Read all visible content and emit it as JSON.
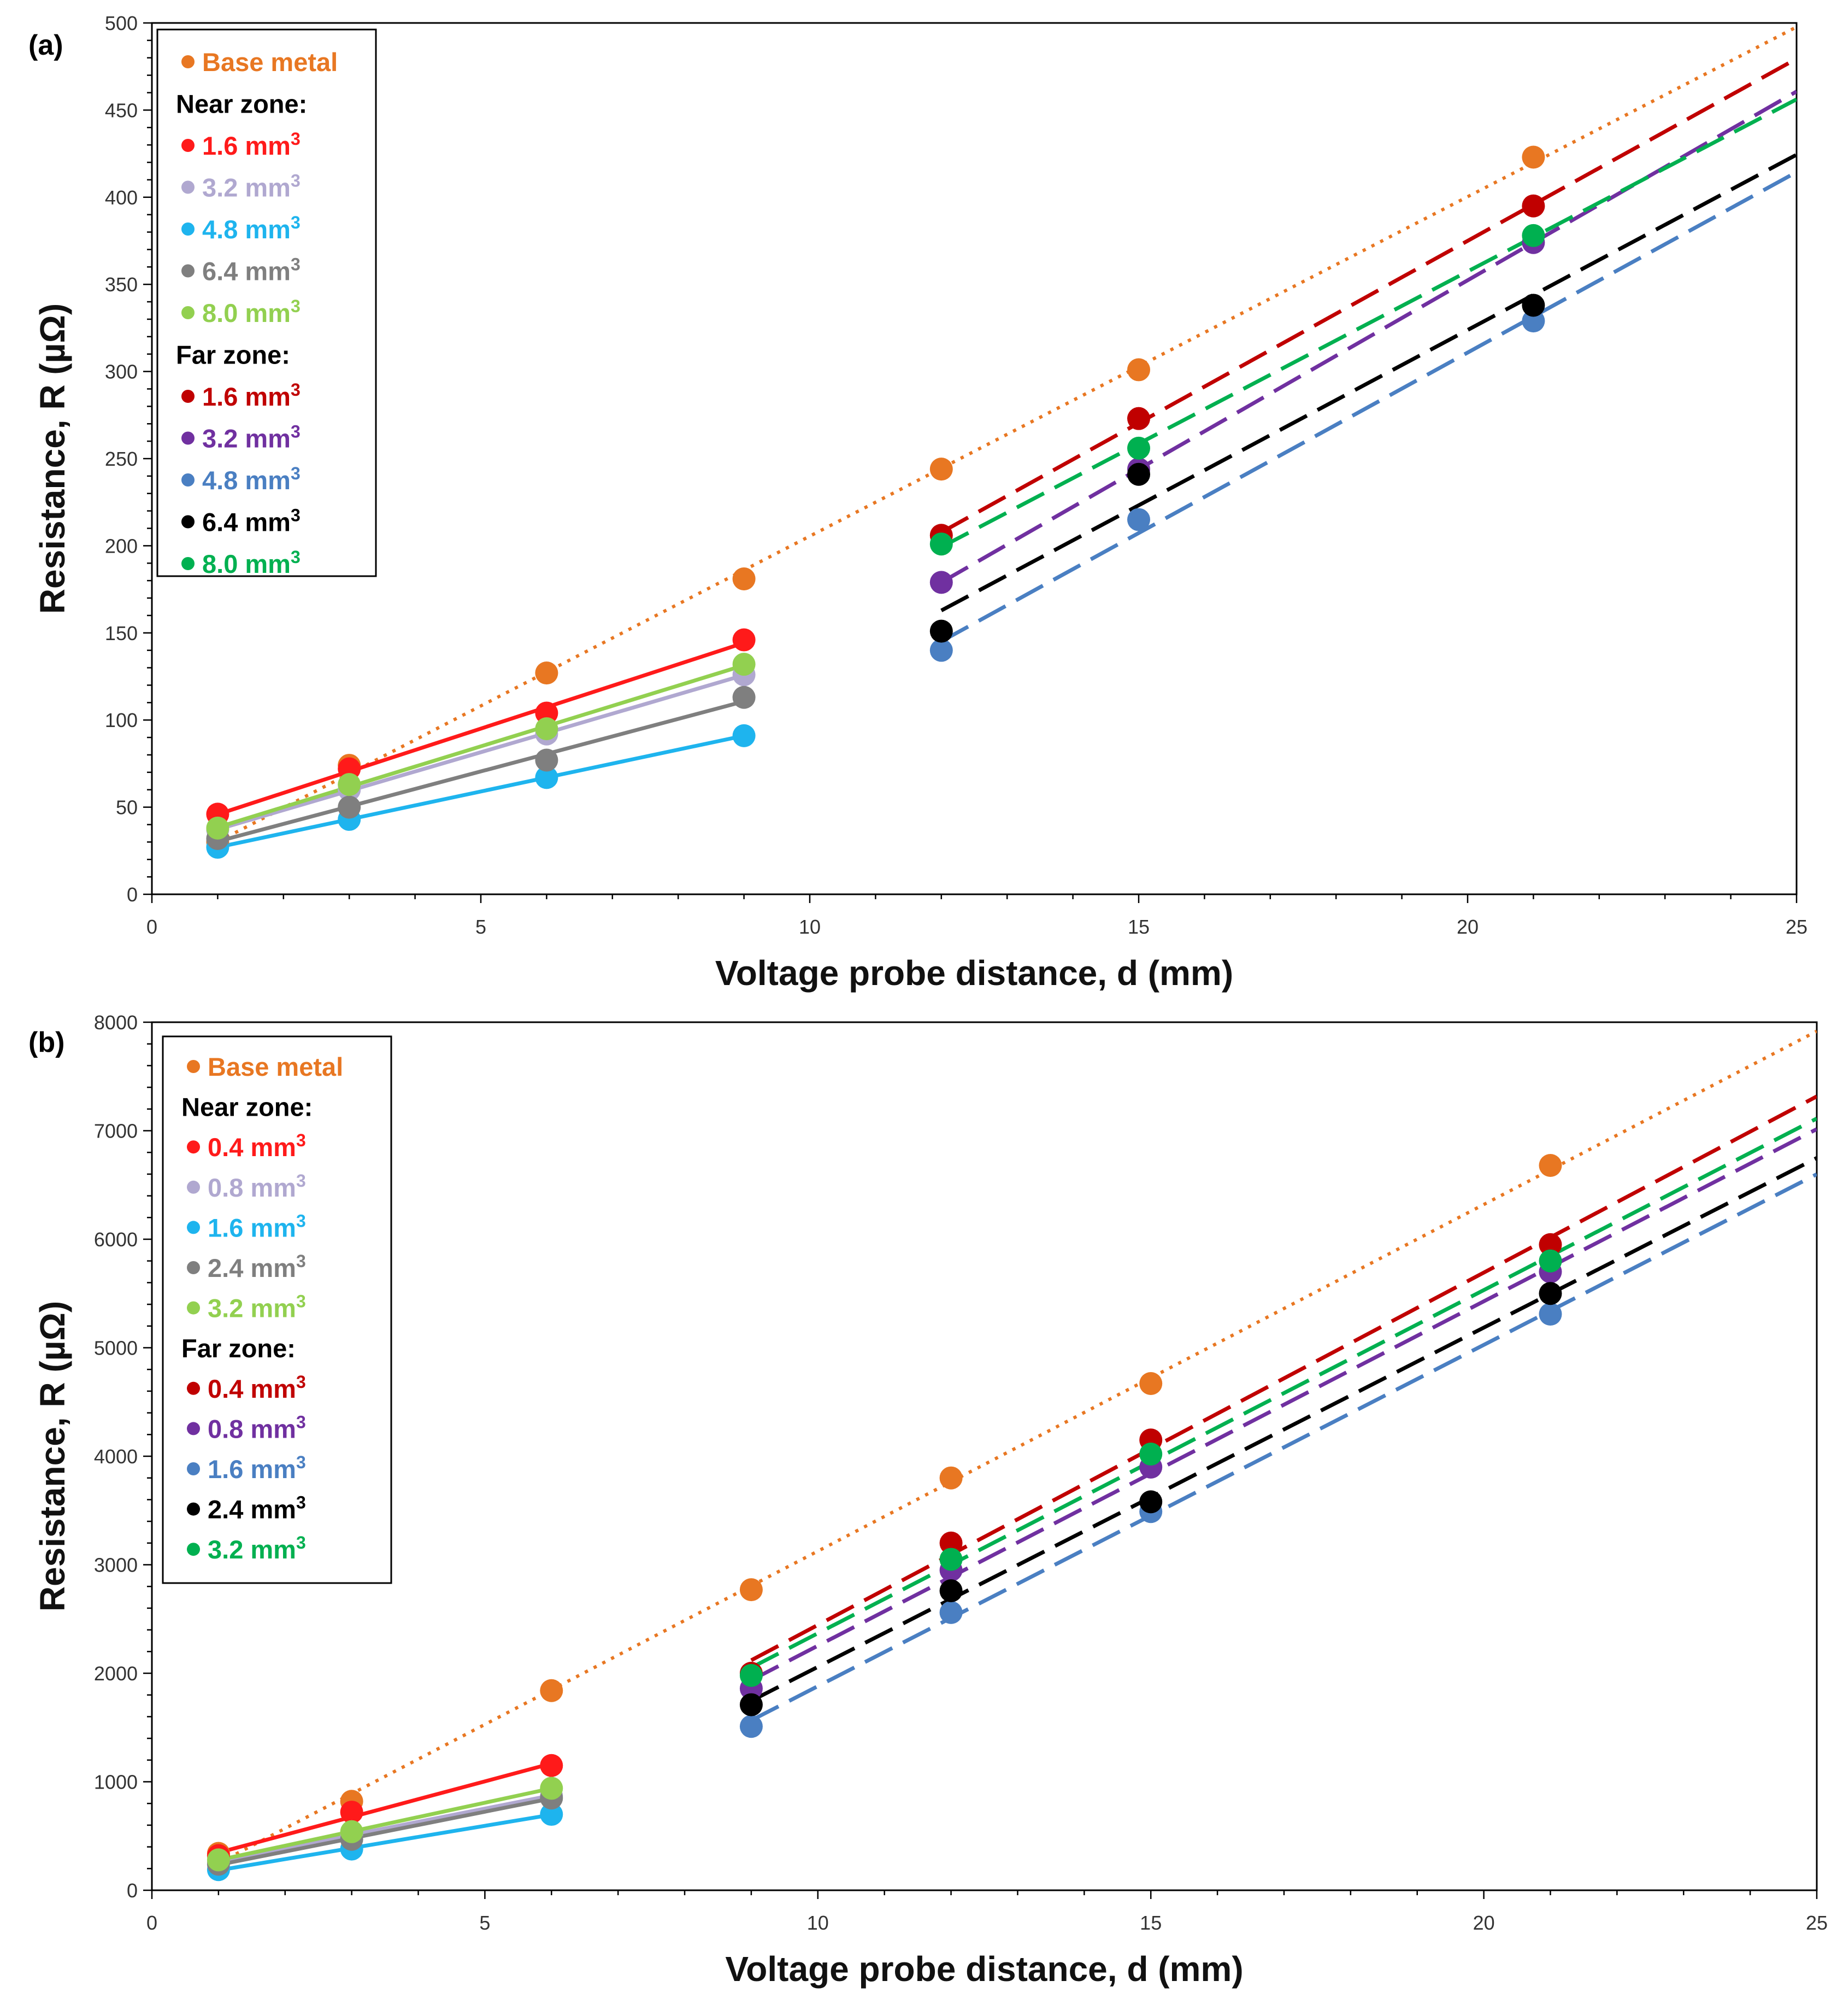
{
  "chart_data": [
    {
      "type": "scatter",
      "panel_label": "(a)",
      "xlabel": "Voltage probe distance, d (mm)",
      "ylabel": "Resistance, R (µΩ)",
      "xlim": [
        0,
        25
      ],
      "ylim": [
        0,
        500
      ],
      "xticks": [
        0,
        5,
        10,
        15,
        20,
        25
      ],
      "yticks": [
        0,
        50,
        100,
        150,
        200,
        250,
        300,
        350,
        400,
        450,
        500
      ],
      "grid": false,
      "legend_position": "top-left",
      "series": [
        {
          "name": "Base metal",
          "group": "",
          "unit": "",
          "color": "#E87722",
          "x": [
            1,
            3,
            6,
            9,
            12,
            15,
            21
          ],
          "y": [
            30,
            74,
            127,
            181,
            244,
            301,
            423
          ],
          "fit": "dotted",
          "fit_range": [
            1,
            25
          ]
        },
        {
          "name": "1.6",
          "group": "Near zone:",
          "unit": " mm",
          "color": "#FF1A1A",
          "x": [
            1,
            3,
            6,
            9
          ],
          "y": [
            46,
            72,
            104,
            146
          ],
          "fit": "solid",
          "fit_range": [
            1,
            9
          ]
        },
        {
          "name": "3.2",
          "group": "Near zone:",
          "unit": " mm",
          "color": "#B0A8D0",
          "x": [
            1,
            3,
            6,
            9
          ],
          "y": [
            37,
            60,
            92,
            126
          ],
          "fit": "solid",
          "fit_range": [
            1,
            9
          ]
        },
        {
          "name": "4.8",
          "group": "Near zone:",
          "unit": " mm",
          "color": "#1EB4EE",
          "x": [
            1,
            3,
            6,
            9
          ],
          "y": [
            27,
            43,
            67,
            91
          ],
          "fit": "solid",
          "fit_range": [
            1,
            9
          ]
        },
        {
          "name": "6.4",
          "group": "Near zone:",
          "unit": " mm",
          "color": "#7F7F7F",
          "x": [
            1,
            3,
            6,
            9
          ],
          "y": [
            32,
            50,
            77,
            113
          ],
          "fit": "solid",
          "fit_range": [
            1,
            9
          ]
        },
        {
          "name": "8.0",
          "group": "Near zone:",
          "unit": " mm",
          "color": "#92D050",
          "x": [
            1,
            3,
            6,
            9
          ],
          "y": [
            38,
            63,
            95,
            132
          ],
          "fit": "solid",
          "fit_range": [
            1,
            9
          ]
        },
        {
          "name": "1.6",
          "group": "Far zone:",
          "unit": " mm",
          "color": "#C00000",
          "x": [
            12,
            15,
            21
          ],
          "y": [
            206,
            273,
            395
          ],
          "fit": "dashed",
          "fit_range": [
            12,
            25
          ]
        },
        {
          "name": "3.2",
          "group": "Far zone:",
          "unit": " mm",
          "color": "#7030A0",
          "x": [
            12,
            15,
            21
          ],
          "y": [
            179,
            244,
            374
          ],
          "fit": "dashed",
          "fit_range": [
            12,
            25
          ]
        },
        {
          "name": "4.8",
          "group": "Far zone:",
          "unit": " mm",
          "color": "#4A7FC2",
          "x": [
            12,
            15,
            21
          ],
          "y": [
            140,
            215,
            329
          ],
          "fit": "dashed",
          "fit_range": [
            12,
            25
          ]
        },
        {
          "name": "6.4",
          "group": "Far zone:",
          "unit": " mm",
          "color": "#000000",
          "x": [
            12,
            15,
            21
          ],
          "y": [
            151,
            241,
            338
          ],
          "fit": "dashed",
          "fit_range": [
            12,
            25
          ]
        },
        {
          "name": "8.0",
          "group": "Far zone:",
          "unit": " mm",
          "color": "#00B050",
          "x": [
            12,
            15,
            21
          ],
          "y": [
            201,
            256,
            378
          ],
          "fit": "dashed",
          "fit_range": [
            12,
            25
          ]
        }
      ]
    },
    {
      "type": "scatter",
      "panel_label": "(b)",
      "xlabel": "Voltage probe distance, d (mm)",
      "ylabel": "Resistance, R (µΩ)",
      "xlim": [
        0,
        25
      ],
      "ylim": [
        0,
        8000
      ],
      "xticks": [
        0,
        5,
        10,
        15,
        20,
        25
      ],
      "yticks": [
        0,
        1000,
        2000,
        3000,
        4000,
        5000,
        6000,
        7000,
        8000
      ],
      "grid": false,
      "legend_position": "top-left",
      "series": [
        {
          "name": "Base metal",
          "group": "",
          "unit": "",
          "color": "#E87722",
          "x": [
            1,
            3,
            6,
            9,
            12,
            15,
            21
          ],
          "y": [
            340,
            820,
            1840,
            2770,
            3800,
            4670,
            6680
          ],
          "fit": "dotted",
          "fit_range": [
            1,
            25
          ]
        },
        {
          "name": "0.4",
          "group": "Near zone:",
          "unit": " mm",
          "color": "#FF1A1A",
          "x": [
            1,
            3,
            6
          ],
          "y": [
            320,
            720,
            1150
          ],
          "fit": "solid",
          "fit_range": [
            1,
            6
          ]
        },
        {
          "name": "0.8",
          "group": "Near zone:",
          "unit": " mm",
          "color": "#B0A8D0",
          "x": [
            1,
            3,
            6
          ],
          "y": [
            260,
            520,
            870
          ],
          "fit": "solid",
          "fit_range": [
            1,
            6
          ]
        },
        {
          "name": "1.6",
          "group": "Near zone:",
          "unit": " mm",
          "color": "#1EB4EE",
          "x": [
            1,
            3,
            6
          ],
          "y": [
            190,
            380,
            700
          ],
          "fit": "solid",
          "fit_range": [
            1,
            6
          ]
        },
        {
          "name": "2.4",
          "group": "Near zone:",
          "unit": " mm",
          "color": "#7F7F7F",
          "x": [
            1,
            3,
            6
          ],
          "y": [
            240,
            470,
            850
          ],
          "fit": "solid",
          "fit_range": [
            1,
            6
          ]
        },
        {
          "name": "3.2",
          "group": "Near zone:",
          "unit": " mm",
          "color": "#92D050",
          "x": [
            1,
            3,
            6
          ],
          "y": [
            280,
            540,
            940
          ],
          "fit": "solid",
          "fit_range": [
            1,
            6
          ]
        },
        {
          "name": "0.4",
          "group": "Far zone:",
          "unit": " mm",
          "color": "#C00000",
          "x": [
            9,
            12,
            15,
            21
          ],
          "y": [
            2000,
            3200,
            4150,
            5950
          ],
          "fit": "dashed",
          "fit_range": [
            9,
            25
          ]
        },
        {
          "name": "0.8",
          "group": "Far zone:",
          "unit": " mm",
          "color": "#7030A0",
          "x": [
            9,
            12,
            15,
            21
          ],
          "y": [
            1860,
            2950,
            3900,
            5700
          ],
          "fit": "dashed",
          "fit_range": [
            9,
            25
          ]
        },
        {
          "name": "1.6",
          "group": "Far zone:",
          "unit": " mm",
          "color": "#4A7FC2",
          "x": [
            9,
            12,
            15,
            21
          ],
          "y": [
            1510,
            2560,
            3490,
            5310
          ],
          "fit": "dashed",
          "fit_range": [
            9,
            25
          ]
        },
        {
          "name": "2.4",
          "group": "Far zone:",
          "unit": " mm",
          "color": "#000000",
          "x": [
            9,
            12,
            15,
            21
          ],
          "y": [
            1710,
            2760,
            3580,
            5500
          ],
          "fit": "dashed",
          "fit_range": [
            9,
            25
          ]
        },
        {
          "name": "3.2",
          "group": "Far zone:",
          "unit": " mm",
          "color": "#00B050",
          "x": [
            9,
            12,
            15,
            21
          ],
          "y": [
            1980,
            3050,
            4020,
            5800
          ],
          "fit": "dashed",
          "fit_range": [
            9,
            25
          ]
        }
      ]
    }
  ]
}
